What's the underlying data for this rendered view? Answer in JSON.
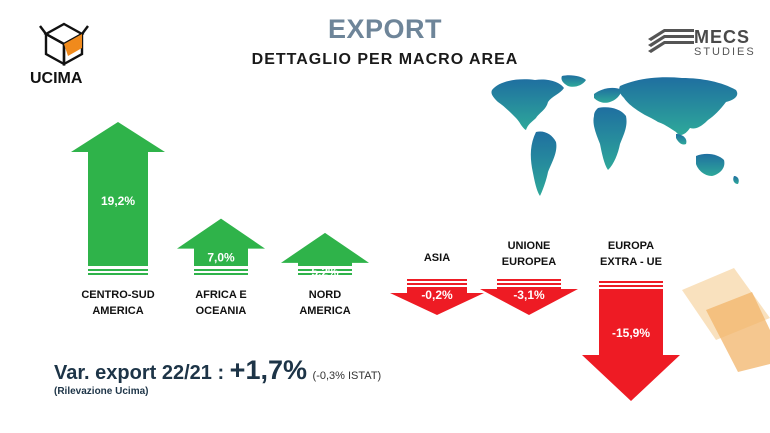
{
  "header": {
    "title": "EXPORT",
    "subtitle": "DETTAGLIO PER MACRO AREA",
    "left_logo_text": "UCIMA",
    "right_logo_text_1": "MECS",
    "right_logo_text_2": "STUDIES"
  },
  "chart_data": {
    "type": "bar",
    "categories": [
      [
        "CENTRO-SUD",
        "AMERICA"
      ],
      [
        "AFRICA E",
        "OCEANIA"
      ],
      [
        "NORD",
        "AMERICA"
      ],
      [
        "ASIA"
      ],
      [
        "UNIONE",
        "EUROPEA"
      ],
      [
        "EUROPA",
        "EXTRA - UE"
      ]
    ],
    "values": [
      19.2,
      7.0,
      5.2,
      -0.2,
      -3.1,
      -15.9
    ],
    "value_labels": [
      "19,2%",
      "7,0%",
      "5,2%",
      "-0,2%",
      "-3,1%",
      "-15,9%"
    ],
    "colors": {
      "positive": "#2fb34a",
      "negative": "#ee1b24"
    }
  },
  "footer": {
    "summary_label": "Var. export 22/21 :",
    "summary_value": "+1,7%",
    "summary_istat": "(-0,3% ISTAT)",
    "note": "(Rilevazione Ucima)"
  }
}
